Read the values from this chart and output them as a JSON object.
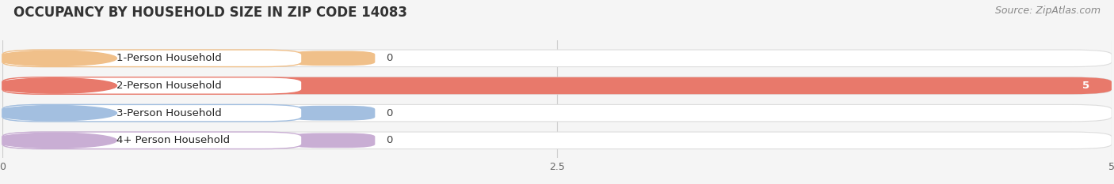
{
  "title": "OCCUPANCY BY HOUSEHOLD SIZE IN ZIP CODE 14083",
  "source": "Source: ZipAtlas.com",
  "categories": [
    "1-Person Household",
    "2-Person Household",
    "3-Person Household",
    "4+ Person Household"
  ],
  "values": [
    0,
    5,
    0,
    0
  ],
  "bar_colors": [
    "#f0c08a",
    "#e8796b",
    "#a3bfe0",
    "#c9aed4"
  ],
  "value_labels": [
    "0",
    "5",
    "0",
    "0"
  ],
  "xlim": [
    0,
    5
  ],
  "xticks": [
    0,
    2.5,
    5
  ],
  "background_color": "#f5f5f5",
  "bar_background_color": "#e8e8e8",
  "bar_row_bg": "#ffffff",
  "title_fontsize": 12,
  "label_fontsize": 9.5,
  "tick_fontsize": 9,
  "source_fontsize": 9
}
